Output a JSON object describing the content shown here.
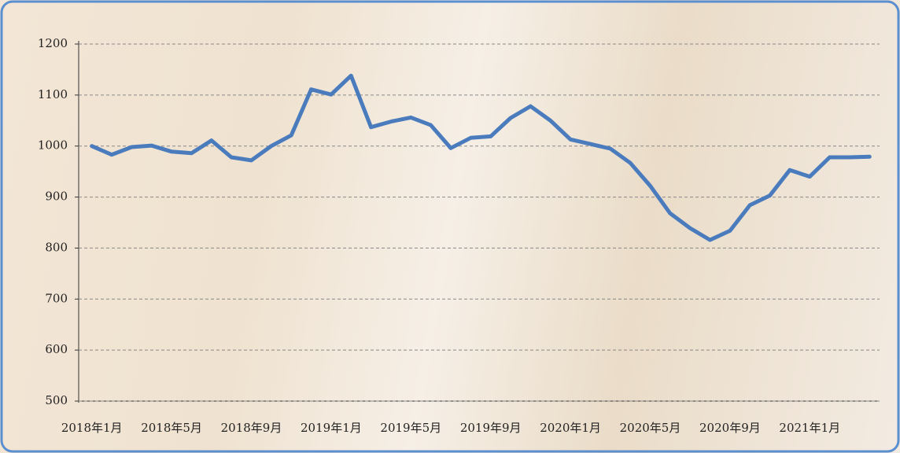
{
  "chart_data": {
    "type": "line",
    "categories": [
      "2018年1月",
      null,
      null,
      null,
      "2018年5月",
      null,
      null,
      null,
      "2018年9月",
      null,
      null,
      null,
      "2019年1月",
      null,
      null,
      null,
      "2019年5月",
      null,
      null,
      null,
      "2019年9月",
      null,
      null,
      null,
      "2020年1月",
      null,
      null,
      null,
      "2020年5月",
      null,
      null,
      null,
      "2020年9月",
      null,
      null,
      null,
      "2021年1月",
      null,
      null,
      null
    ],
    "values": [
      1000,
      983,
      998,
      1001,
      989,
      986,
      1011,
      978,
      972,
      1000,
      1021,
      1111,
      1101,
      1138,
      1037,
      1048,
      1056,
      1041,
      996,
      1016,
      1019,
      1055,
      1078,
      1050,
      1013,
      1004,
      995,
      967,
      922,
      868,
      839,
      816,
      834,
      884,
      903,
      953,
      940,
      978,
      978,
      979
    ],
    "color": "#4a7bbd",
    "ylim": [
      500,
      1200
    ],
    "yticks": [
      500,
      600,
      700,
      800,
      900,
      1000,
      1100,
      1200
    ],
    "grid": true
  }
}
